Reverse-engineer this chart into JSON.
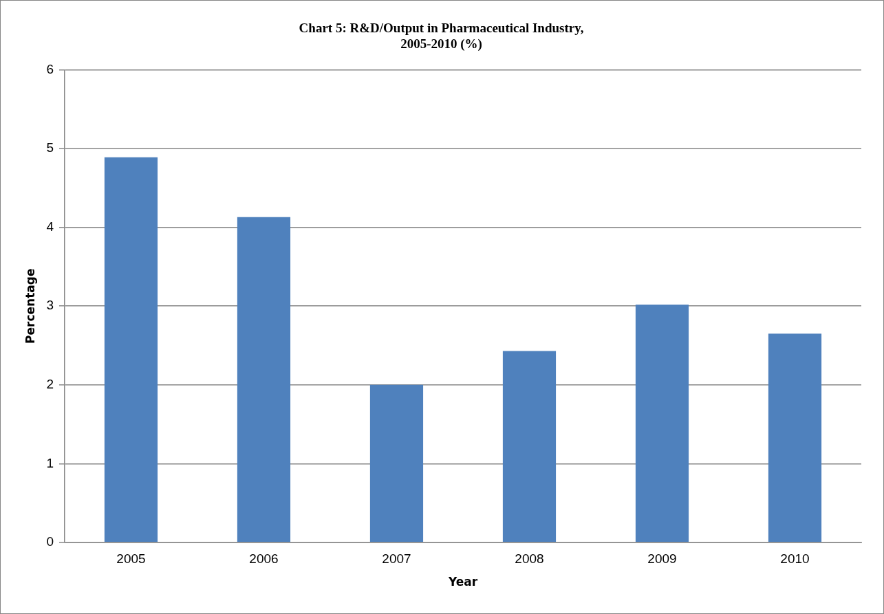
{
  "chart_data": {
    "type": "bar",
    "title": "Chart 5: R&D/Output in Pharmaceutical Industry,\n2005-2010 (%)",
    "xlabel": "Year",
    "ylabel": "Percentage",
    "categories": [
      "2005",
      "2006",
      "2007",
      "2008",
      "2009",
      "2010"
    ],
    "values": [
      4.89,
      4.13,
      2.0,
      2.43,
      3.02,
      2.65
    ],
    "color": "#4f81bd",
    "ylim": [
      0,
      6
    ],
    "yticks": [
      0,
      1,
      2,
      3,
      4,
      5,
      6
    ],
    "grid": "y",
    "legend": false
  }
}
